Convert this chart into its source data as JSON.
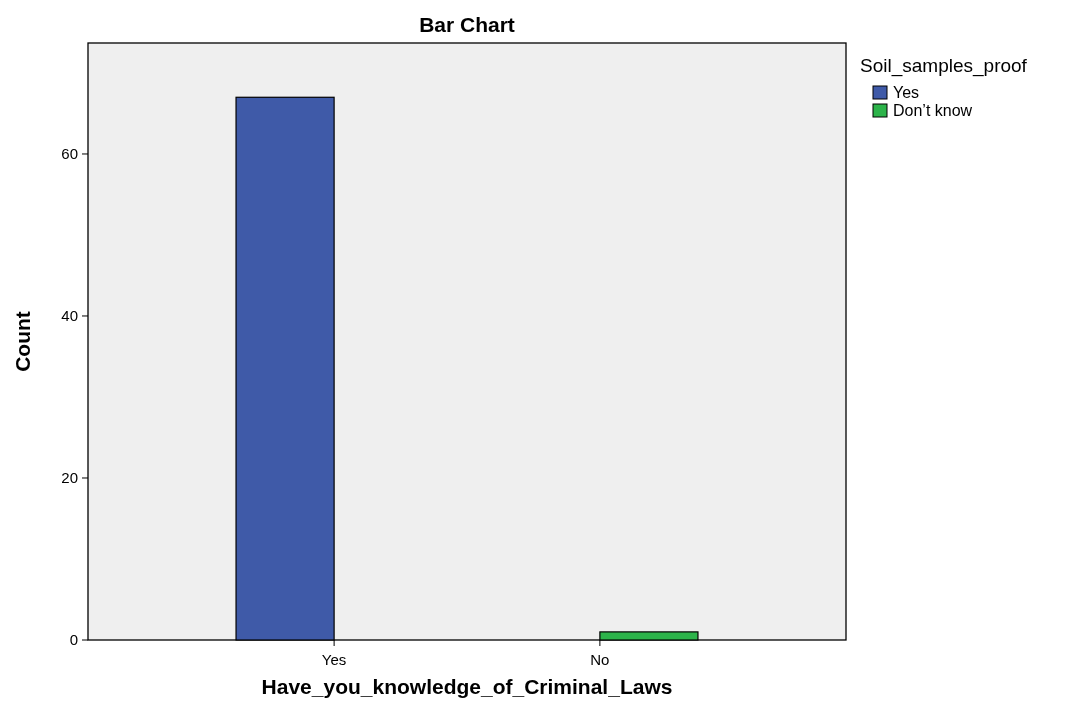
{
  "chart_data": {
    "type": "bar",
    "title": "Bar Chart",
    "xlabel": "Have_you_knowledge_of_Criminal_Laws",
    "ylabel": "Count",
    "legend_title": "Soil_samples_proof",
    "categories": [
      "Yes",
      "No"
    ],
    "series": [
      {
        "name": "Yes",
        "color": "#3f5aa8",
        "values": [
          67,
          null
        ]
      },
      {
        "name": "Don’t know",
        "color": "#2cb34a",
        "values": [
          null,
          1
        ]
      }
    ],
    "ylim": [
      0,
      73.7
    ],
    "yticks": [
      0,
      20,
      40,
      60
    ],
    "grid": false,
    "legend": "top right"
  }
}
